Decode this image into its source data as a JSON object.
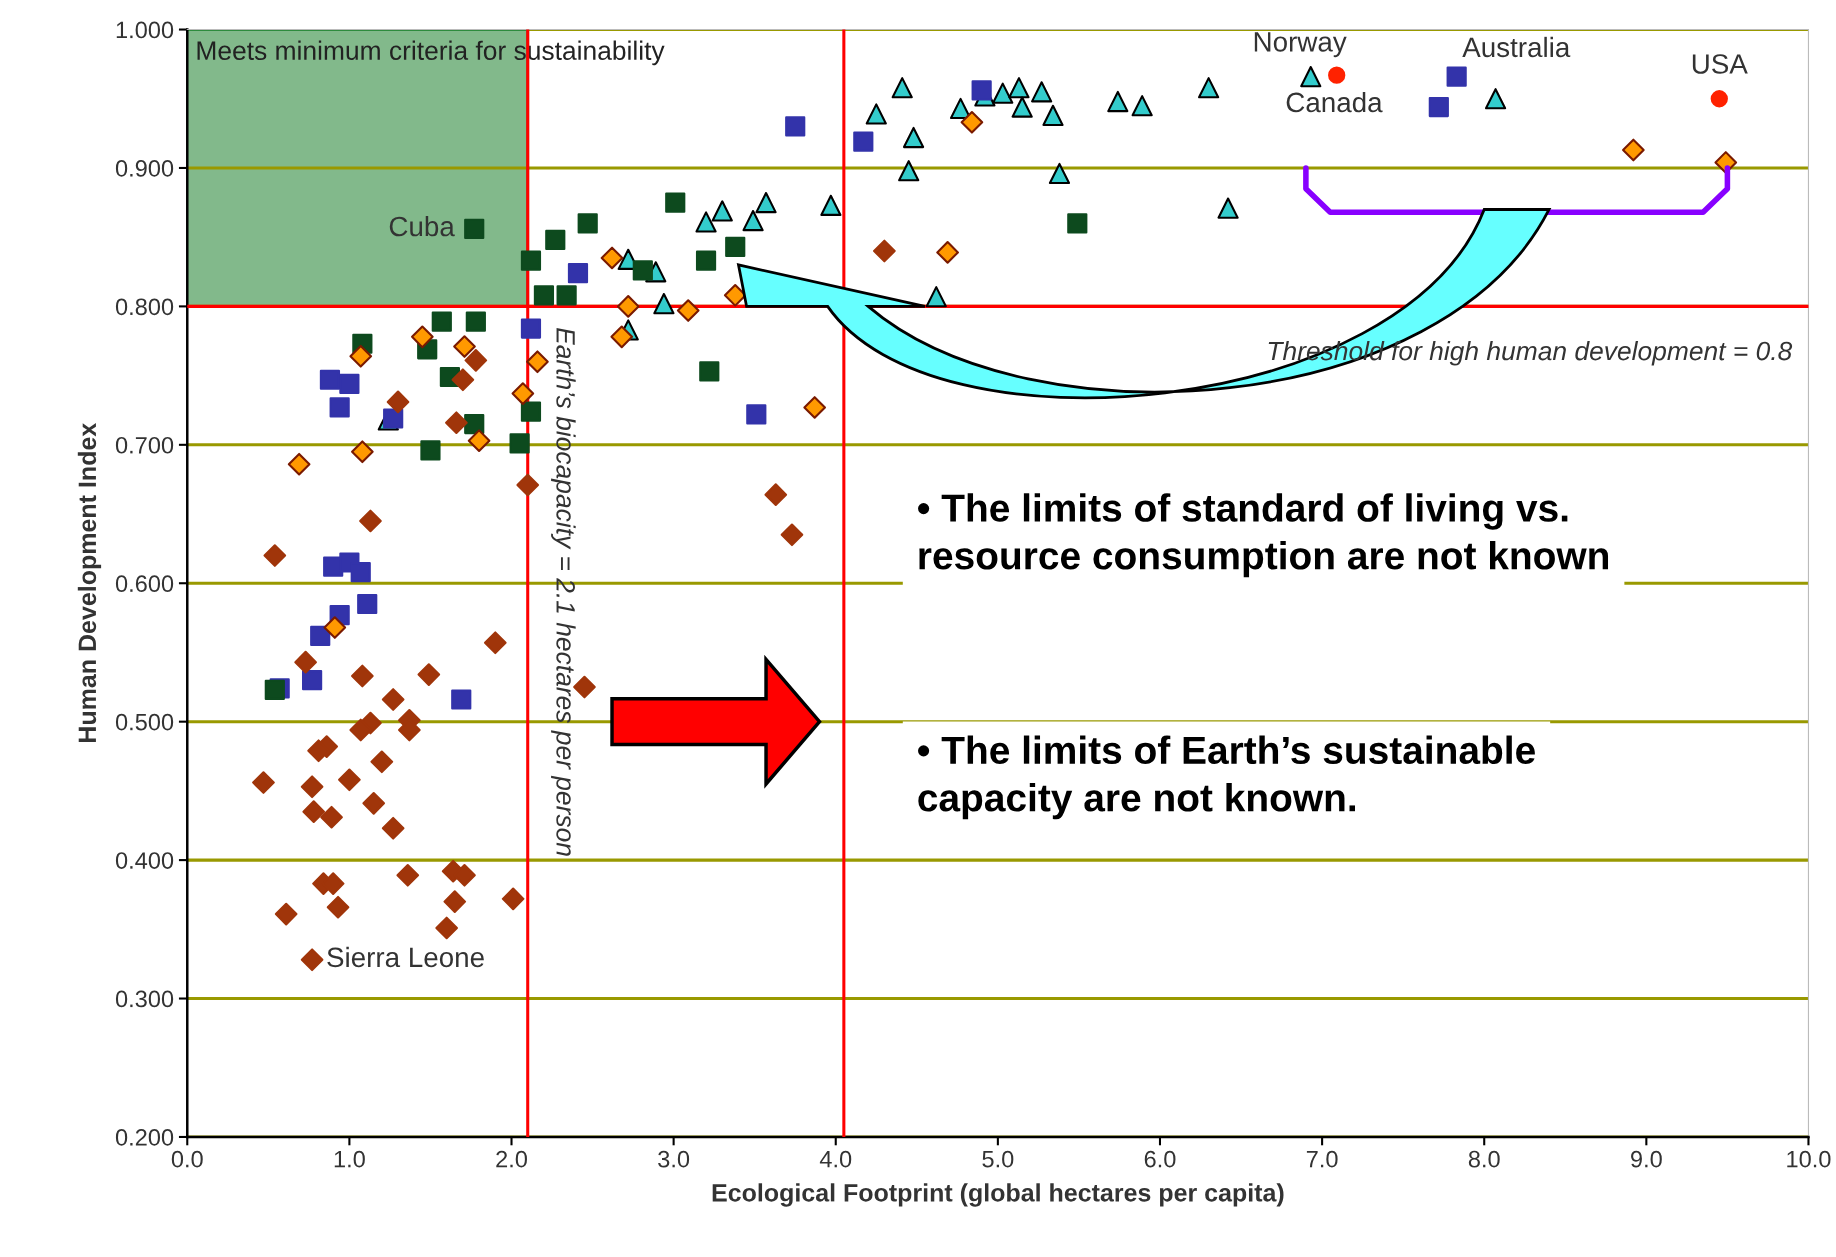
{
  "chart_data": {
    "type": "scatter",
    "xlabel": "Ecological Footprint (global hectares per capita)",
    "ylabel": "Human Development Index",
    "xlim": [
      0,
      10
    ],
    "ylim": [
      0.2,
      1.0
    ],
    "xticks": [
      {
        "value": 0,
        "label": "0.0"
      },
      {
        "value": 1,
        "label": "1.0"
      },
      {
        "value": 2,
        "label": "2.0"
      },
      {
        "value": 3,
        "label": "3.0"
      },
      {
        "value": 4,
        "label": "4.0"
      },
      {
        "value": 5,
        "label": "5.0"
      },
      {
        "value": 6,
        "label": "6.0"
      },
      {
        "value": 7,
        "label": "7.0"
      },
      {
        "value": 8,
        "label": "8.0"
      },
      {
        "value": 9,
        "label": "9.0"
      },
      {
        "value": 10,
        "label": "10.0"
      }
    ],
    "yticks": [
      {
        "value": 0.2,
        "label": "0.200"
      },
      {
        "value": 0.3,
        "label": "0.300"
      },
      {
        "value": 0.4,
        "label": "0.400"
      },
      {
        "value": 0.5,
        "label": "0.500"
      },
      {
        "value": 0.6,
        "label": "0.600"
      },
      {
        "value": 0.7,
        "label": "0.700"
      },
      {
        "value": 0.8,
        "label": "0.800"
      },
      {
        "value": 0.9,
        "label": "0.900"
      },
      {
        "value": 1.0,
        "label": "1.000"
      }
    ],
    "grid": "y",
    "series": [
      {
        "color": "#a0350a",
        "marker": "diamond",
        "x": [
          1.13,
          0.54,
          1.9,
          0.73,
          1.08,
          1.49,
          1.27,
          1.13,
          1.37,
          1.37,
          1.07,
          0.86,
          0.81,
          1.2,
          0.47,
          1.0,
          0.77,
          1.15,
          0.78,
          0.89,
          1.27,
          1.36,
          1.64,
          1.71,
          0.84,
          0.9,
          2.01,
          1.65,
          0.93,
          0.61,
          1.6,
          0.77,
          2.45,
          3.63,
          3.73,
          2.1,
          1.3,
          1.66,
          1.78,
          1.7,
          4.3
        ],
        "values": [
          0.645,
          0.62,
          0.557,
          0.543,
          0.533,
          0.534,
          0.516,
          0.499,
          0.501,
          0.494,
          0.494,
          0.482,
          0.479,
          0.471,
          0.456,
          0.458,
          0.453,
          0.441,
          0.435,
          0.431,
          0.423,
          0.389,
          0.392,
          0.389,
          0.383,
          0.383,
          0.372,
          0.37,
          0.366,
          0.361,
          0.351,
          0.328,
          0.525,
          0.664,
          0.635,
          0.671,
          0.731,
          0.716,
          0.761,
          0.747,
          0.84
        ]
      },
      {
        "color": "#ff9900",
        "marker": "diamond",
        "x": [
          1.45,
          1.07,
          1.71,
          2.16,
          2.07,
          1.8,
          1.08,
          0.69,
          0.91,
          2.62,
          2.72,
          3.09,
          3.38,
          2.68,
          3.87,
          4.69,
          4.84,
          8.92,
          9.49
        ],
        "values": [
          0.778,
          0.764,
          0.771,
          0.76,
          0.737,
          0.703,
          0.695,
          0.686,
          0.568,
          0.835,
          0.8,
          0.797,
          0.808,
          0.778,
          0.727,
          0.839,
          0.933,
          0.913,
          0.904
        ]
      },
      {
        "color": "#0d4a1e",
        "marker": "square",
        "x": [
          1.77,
          2.27,
          2.12,
          2.2,
          2.34,
          1.57,
          1.78,
          1.08,
          1.48,
          1.62,
          2.12,
          1.77,
          1.5,
          2.05,
          0.54,
          3.01,
          2.47,
          2.81,
          3.2,
          3.38,
          3.22,
          5.49
        ],
        "values": [
          0.856,
          0.848,
          0.833,
          0.808,
          0.808,
          0.789,
          0.789,
          0.773,
          0.769,
          0.749,
          0.724,
          0.715,
          0.696,
          0.701,
          0.523,
          0.875,
          0.86,
          0.826,
          0.833,
          0.843,
          0.753,
          0.86
        ]
      },
      {
        "color": "#3333aa",
        "marker": "square",
        "x": [
          2.12,
          0.88,
          1.0,
          0.94,
          1.27,
          0.9,
          1.0,
          1.07,
          1.11,
          0.94,
          0.82,
          0.77,
          0.57,
          1.69,
          2.41,
          3.51,
          3.75,
          4.17,
          4.9,
          7.83,
          7.72
        ],
        "values": [
          0.784,
          0.747,
          0.744,
          0.727,
          0.719,
          0.612,
          0.615,
          0.608,
          0.585,
          0.577,
          0.562,
          0.53,
          0.524,
          0.516,
          0.824,
          0.722,
          0.93,
          0.919,
          0.956,
          0.966,
          0.944
        ]
      },
      {
        "color": "#33cccc",
        "marker": "triangle",
        "x": [
          1.24,
          3.2,
          3.3,
          3.49,
          3.57,
          3.97,
          2.72,
          2.89,
          2.94,
          2.72,
          4.62,
          4.45,
          4.25,
          4.41,
          4.48,
          4.77,
          4.92,
          5.03,
          5.13,
          5.15,
          5.27,
          5.34,
          5.74,
          5.89,
          6.3,
          5.38,
          6.42,
          6.93,
          8.07
        ],
        "values": [
          0.718,
          0.861,
          0.869,
          0.862,
          0.875,
          0.873,
          0.834,
          0.825,
          0.802,
          0.783,
          0.807,
          0.898,
          0.939,
          0.958,
          0.922,
          0.943,
          0.952,
          0.954,
          0.958,
          0.944,
          0.955,
          0.938,
          0.948,
          0.945,
          0.958,
          0.896,
          0.871,
          0.966,
          0.95
        ]
      },
      {
        "color": "#ff2200",
        "marker": "circle",
        "x": [
          7.09,
          9.45
        ],
        "values": [
          0.967,
          0.95
        ]
      }
    ],
    "ref_lines": [
      {
        "axis": "y",
        "value": 0.8,
        "label": "Threshold for high human development = 0.8",
        "color": "#ff0000"
      },
      {
        "axis": "x",
        "value": 2.1,
        "label": "Earth’s biocapacity = 2.1 hectares per person",
        "color": "#ff0000"
      },
      {
        "axis": "x",
        "value": 4.05,
        "color": "#ff0000"
      }
    ],
    "bands": [
      {
        "axis": "x",
        "from": 0,
        "to": 2.1,
        "label": "Meets minimum criteria for sustainability",
        "color": "#2e8b3e"
      }
    ],
    "annotations": [
      {
        "text": "Cuba",
        "x": 1.77,
        "y": 0.856
      },
      {
        "text": "Sierra Leone",
        "x": 0.77,
        "y": 0.328
      },
      {
        "text": "Norway",
        "x": 6.93,
        "y": 0.966
      },
      {
        "text": "Canada",
        "x": 7.09,
        "y": 0.967
      },
      {
        "text": "Australia",
        "x": 7.83,
        "y": 0.966
      },
      {
        "text": "USA",
        "x": 9.45,
        "y": 0.95
      },
      "• The limits of standard of living vs. resource consumption are not known",
      "• The limits of Earth’s sustainable capacity are not known."
    ]
  }
}
